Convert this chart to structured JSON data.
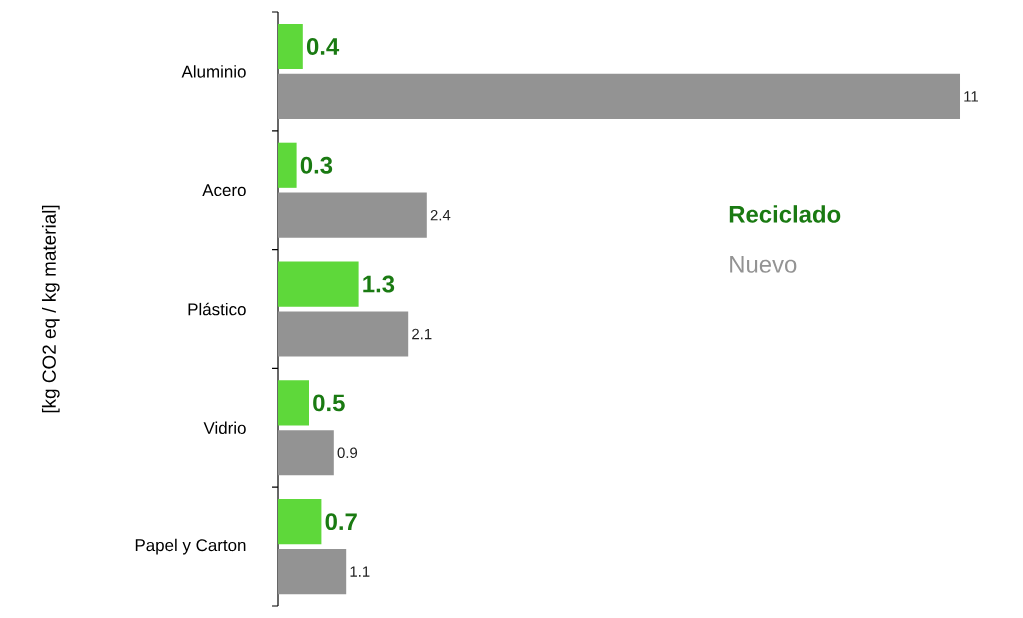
{
  "chart_data": {
    "type": "bar",
    "orientation": "horizontal",
    "ylabel": "[kg CO2 eq / kg material]",
    "categories": [
      "Aluminio",
      "Acero",
      "Plástico",
      "Vidrio",
      "Papel y Carton"
    ],
    "series": [
      {
        "name": "Reciclado",
        "color": "#5ed83a",
        "values": [
          0.4,
          0.3,
          1.3,
          0.5,
          0.7
        ]
      },
      {
        "name": "Nuevo",
        "color": "#939393",
        "values": [
          11,
          2.4,
          2.1,
          0.9,
          1.1
        ]
      }
    ],
    "data_labels": true,
    "legend": "right"
  }
}
